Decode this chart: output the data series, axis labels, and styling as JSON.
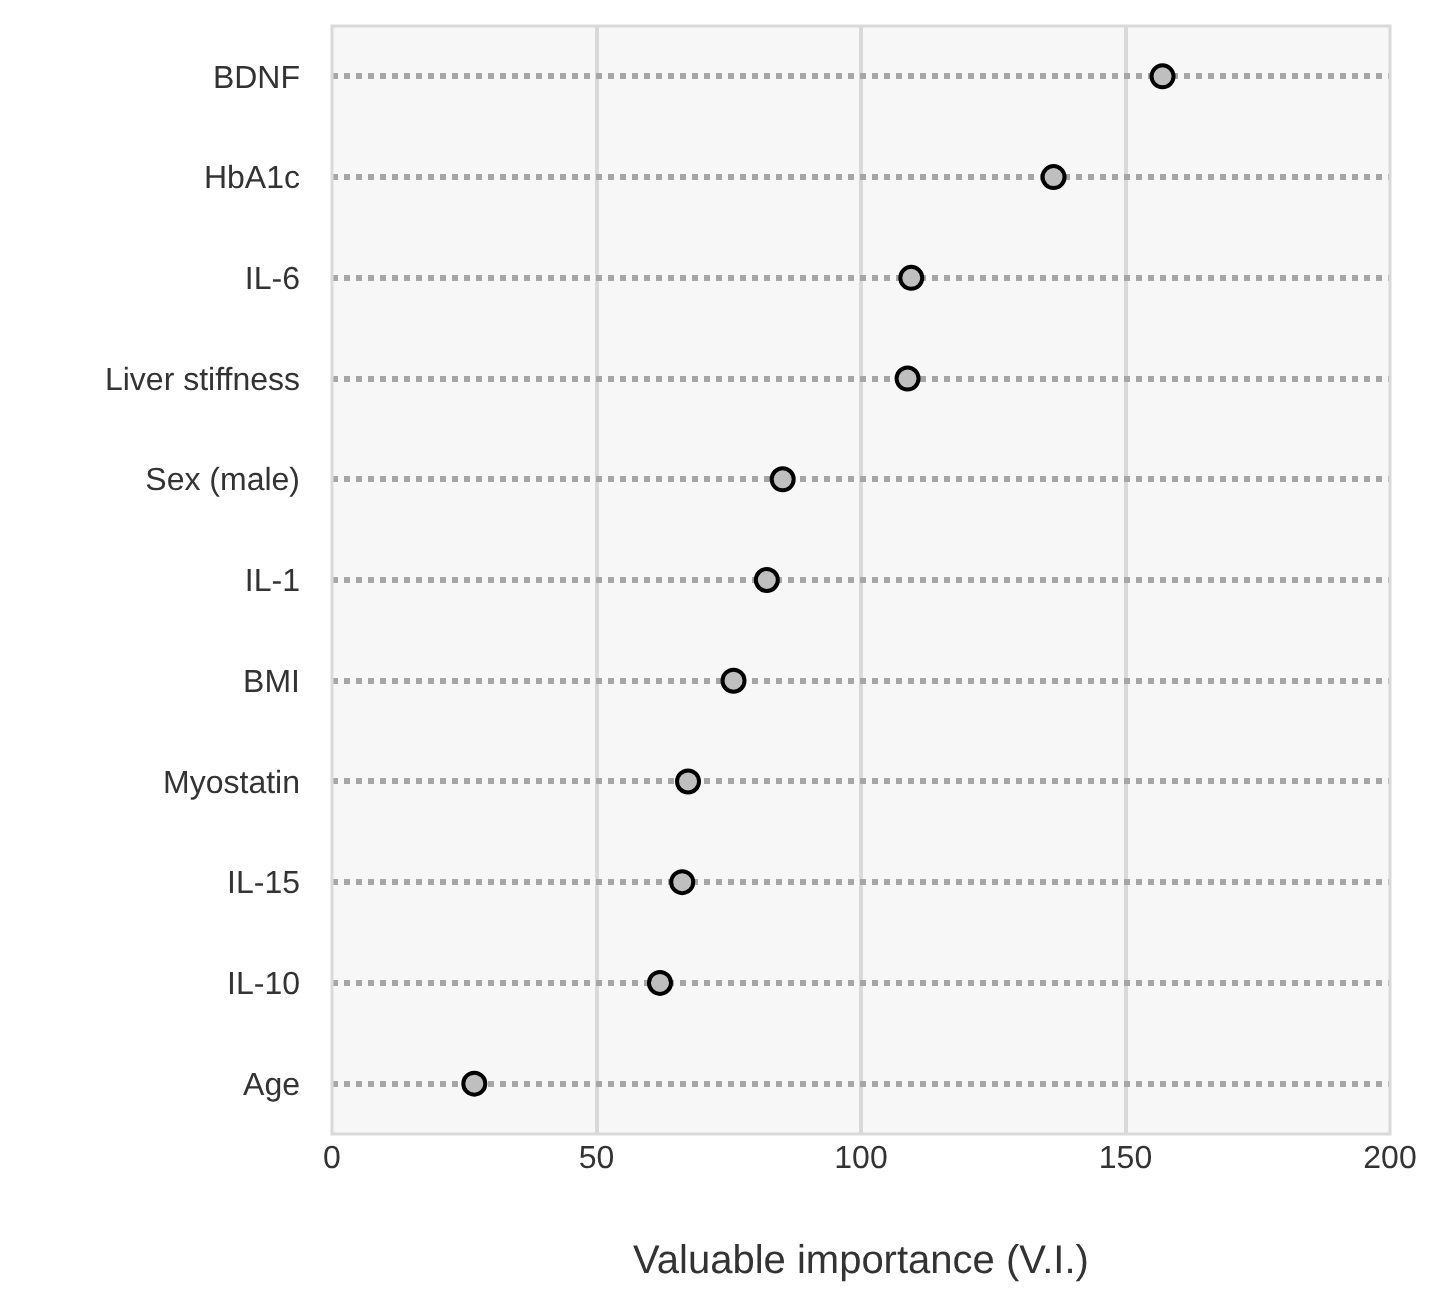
{
  "chart_data": {
    "type": "scatter",
    "orientation": "horizontal",
    "xlabel": "Valuable importance (V.I.)",
    "categories": [
      "BDNF",
      "HbA1c",
      "IL-6",
      "Liver stiffness",
      "Sex (male)",
      "IL-1",
      "BMI",
      "Myostatin",
      "IL-15",
      "IL-10",
      "Age"
    ],
    "values": [
      157,
      136.4,
      109.5,
      108.8,
      85.2,
      82.2,
      75.9,
      67.3,
      66.2,
      62,
      26.9
    ],
    "color": "#bfbfbf",
    "marker": "circle",
    "xlim": [
      0,
      200
    ],
    "xticks": [
      0,
      50,
      100,
      150,
      200
    ],
    "grid": true,
    "legend": false
  }
}
